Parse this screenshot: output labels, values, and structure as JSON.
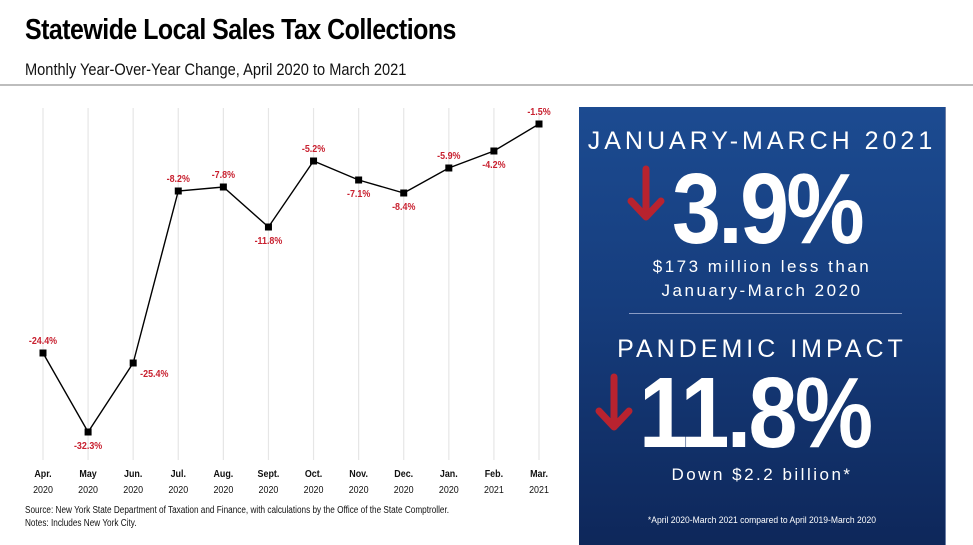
{
  "header": {
    "title": "Statewide Local Sales Tax Collections",
    "subtitle": "Monthly Year-Over-Year Change, April 2020 to March 2021"
  },
  "footnotes": {
    "source": "Source: New York State Department of Taxation and Finance, with calculations by the Office of the State Comptroller.",
    "notes": "Notes: Includes New York City."
  },
  "chart_data": {
    "type": "line",
    "title": "Statewide Local Sales Tax Collections",
    "subtitle": "Monthly Year-Over-Year Change, April 2020 to March 2021",
    "xlabel": "",
    "ylabel": "",
    "categories": [
      [
        "Apr.",
        "2020"
      ],
      [
        "May",
        "2020"
      ],
      [
        "Jun.",
        "2020"
      ],
      [
        "Jul.",
        "2020"
      ],
      [
        "Aug.",
        "2020"
      ],
      [
        "Sept.",
        "2020"
      ],
      [
        "Oct.",
        "2020"
      ],
      [
        "Nov.",
        "2020"
      ],
      [
        "Dec.",
        "2020"
      ],
      [
        "Jan.",
        "2020"
      ],
      [
        "Feb.",
        "2021"
      ],
      [
        "Mar.",
        "2021"
      ]
    ],
    "series": [
      {
        "name": "Year-over-year change (%)",
        "values": [
          -24.4,
          -32.3,
          -25.4,
          -8.2,
          -7.8,
          -11.8,
          -5.2,
          -7.1,
          -8.4,
          -5.9,
          -4.2,
          -1.5
        ],
        "labels": [
          "-24.4%",
          "-32.3%",
          "-25.4%",
          "-8.2%",
          "-7.8%",
          "-11.8%",
          "-5.2%",
          "-7.1%",
          "-8.4%",
          "-5.9%",
          "-4.2%",
          "-1.5%"
        ],
        "label_positions": [
          "above",
          "below",
          "below-right",
          "above",
          "above",
          "below",
          "above",
          "below",
          "below",
          "above",
          "below",
          "above"
        ]
      }
    ],
    "ylim": [
      -35,
      0
    ],
    "grid": "vertical",
    "legend": "none",
    "colors": {
      "line": "#000000",
      "marker": "#000000",
      "data_label": "#c8202f",
      "grid": "#e6e6e6"
    }
  },
  "panel": {
    "section1": {
      "heading": "JANUARY-MARCH 2021",
      "direction_icon": "down-arrow",
      "value": "3.9%",
      "detail_line1": "$173 million less than",
      "detail_line2": "January-March 2020"
    },
    "section2": {
      "heading": "PANDEMIC IMPACT",
      "direction_icon": "down-arrow",
      "value": "11.8%",
      "detail": "Down $2.2 billion*"
    },
    "footnote": "*April 2020-March 2021 compared to April 2019-March 2020",
    "colors": {
      "background_top": "#1c4b91",
      "background_bottom": "#0e275a",
      "arrow": "#b8232f",
      "text": "#ffffff"
    }
  }
}
